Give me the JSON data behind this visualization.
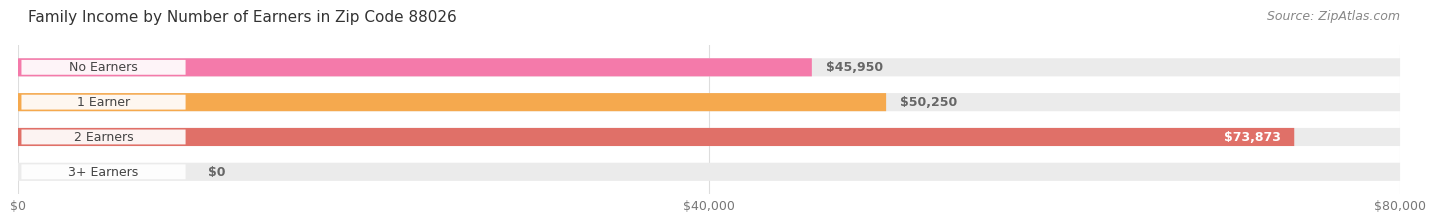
{
  "title": "Family Income by Number of Earners in Zip Code 88026",
  "source": "Source: ZipAtlas.com",
  "categories": [
    "No Earners",
    "1 Earner",
    "2 Earners",
    "3+ Earners"
  ],
  "values": [
    45950,
    50250,
    73873,
    0
  ],
  "bar_colors": [
    "#f47aaa",
    "#f5a94e",
    "#e07068",
    "#a8bce0"
  ],
  "value_labels": [
    "$45,950",
    "$50,250",
    "$73,873",
    "$0"
  ],
  "xlim": [
    0,
    80000
  ],
  "xticks": [
    0,
    40000,
    80000
  ],
  "xtick_labels": [
    "$0",
    "$40,000",
    "$80,000"
  ],
  "title_fontsize": 11,
  "source_fontsize": 9,
  "label_fontsize": 9,
  "bar_height": 0.52,
  "background_color": "#ffffff",
  "track_color": "#ebebeb",
  "label_pill_color": "#ffffff",
  "label_text_color": "#444444",
  "value_label_color": "#ffffff",
  "value_label_outside_color": "#666666"
}
